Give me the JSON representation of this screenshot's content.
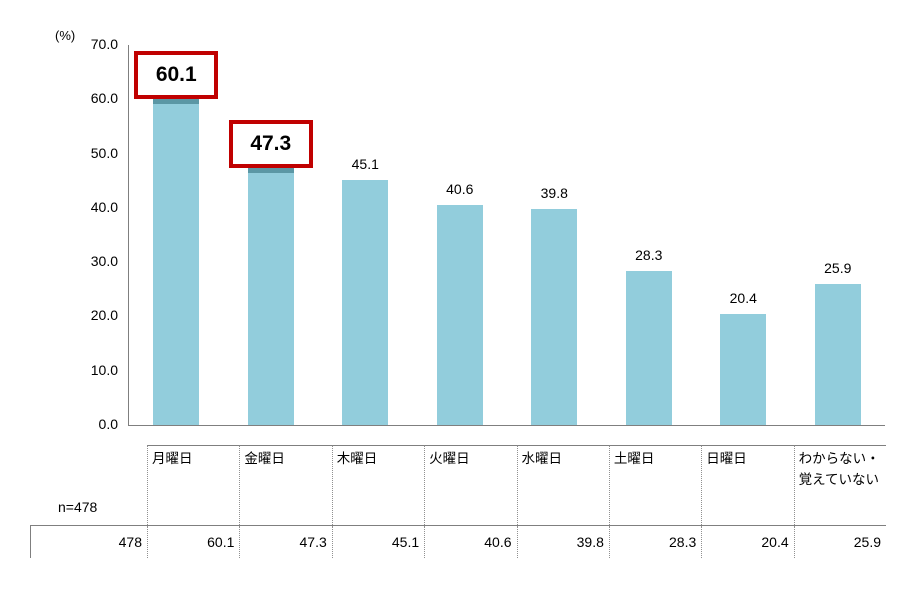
{
  "chart_data": {
    "type": "bar",
    "unit_label": "(%)",
    "n_label": "n=478",
    "n_value": "478",
    "categories": [
      "月曜日",
      "金曜日",
      "木曜日",
      "火曜日",
      "水曜日",
      "土曜日",
      "日曜日",
      "わからない・覚えていない"
    ],
    "values": [
      60.1,
      47.3,
      45.1,
      40.6,
      39.8,
      28.3,
      20.4,
      25.9
    ],
    "value_labels": [
      "60.1",
      "47.3",
      "45.1",
      "40.6",
      "39.8",
      "28.3",
      "20.4",
      "25.9"
    ],
    "table_row_values": [
      "478",
      "60.1",
      "47.3",
      "45.1",
      "40.6",
      "39.8",
      "28.3",
      "20.4",
      "25.9"
    ],
    "highlighted_indices": [
      0,
      1
    ],
    "y_ticks": [
      "70.0",
      "60.0",
      "50.0",
      "40.0",
      "30.0",
      "20.0",
      "10.0",
      "0.0"
    ],
    "ylim": [
      0,
      70
    ],
    "grid": false,
    "legend": false,
    "title": "",
    "xlabel": "",
    "ylabel": "(%)",
    "bar_color": "#92cddc",
    "bar_cap_color": "#5b97a5",
    "highlight_border_color": "#c00000",
    "axis_color": "#7f7f7f"
  }
}
